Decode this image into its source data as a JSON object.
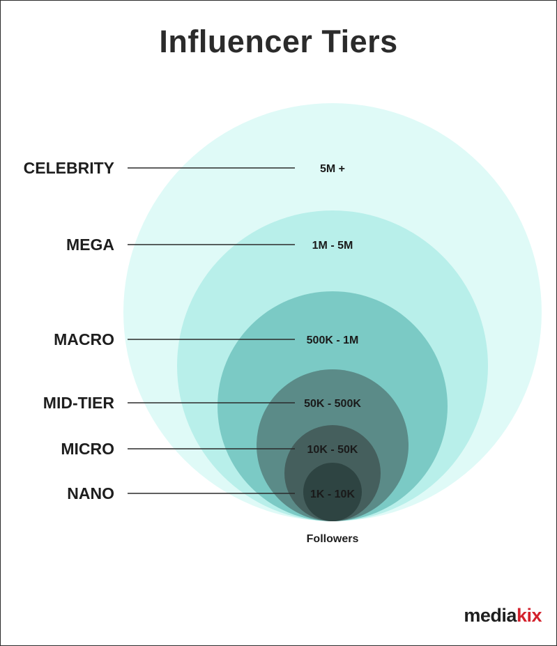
{
  "title": "Influencer Tiers",
  "caption": "Followers",
  "logo": {
    "part1": "media",
    "part2": "kix"
  },
  "colors": {
    "accent_red": "#d3212c",
    "circle_fills": [
      "#dffaf7",
      "#b8efea",
      "#7bcac5",
      "#5b8b88",
      "#455f5d",
      "#2e4442"
    ]
  },
  "tiers": [
    {
      "name": "CELEBRITY",
      "range": "5M +"
    },
    {
      "name": "MEGA",
      "range": "1M - 5M"
    },
    {
      "name": "MACRO",
      "range": "500K - 1M"
    },
    {
      "name": "MID-TIER",
      "range": "50K - 500K"
    },
    {
      "name": "MICRO",
      "range": "10K - 50K"
    },
    {
      "name": "NANO",
      "range": "1K - 10K"
    }
  ]
}
